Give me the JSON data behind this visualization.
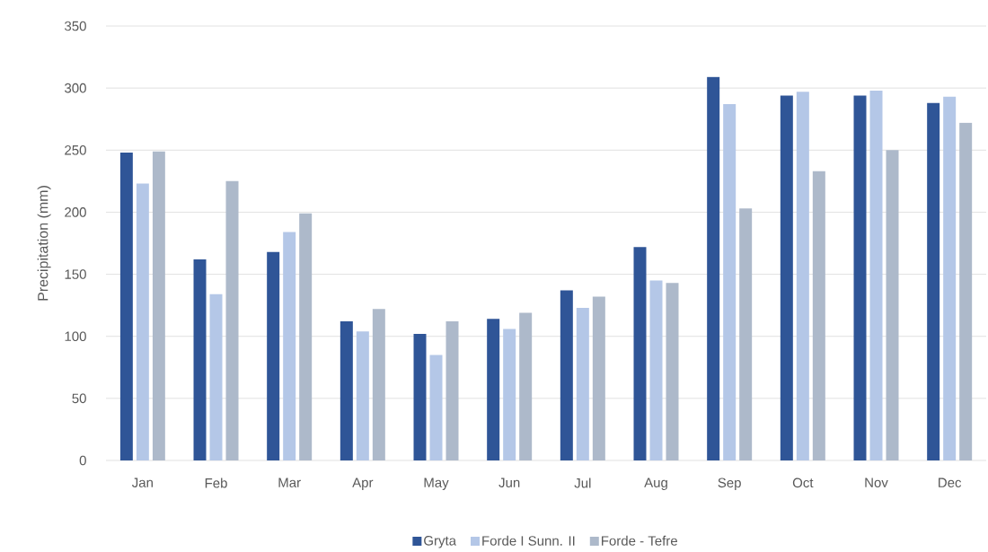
{
  "chart_data": {
    "type": "bar",
    "ylabel": "Precipitation (mm)",
    "categories": [
      "Jan",
      "Feb",
      "Mar",
      "Apr",
      "May",
      "Jun",
      "Jul",
      "Aug",
      "Sep",
      "Oct",
      "Nov",
      "Dec"
    ],
    "series": [
      {
        "name": "Gryta",
        "color": "#2f5597",
        "values": [
          248,
          162,
          168,
          112,
          102,
          114,
          137,
          172,
          309,
          294,
          294,
          288
        ]
      },
      {
        "name": "Forde I Sunn. II",
        "color": "#b4c7e7",
        "values": [
          223,
          134,
          184,
          104,
          85,
          106,
          123,
          145,
          287,
          297,
          298,
          293
        ]
      },
      {
        "name": "Forde - Tefre",
        "color": "#adb9ca",
        "values": [
          249,
          225,
          199,
          122,
          112,
          119,
          132,
          143,
          203,
          233,
          250,
          272
        ]
      }
    ],
    "ylim": [
      0,
      350
    ],
    "yticks": [
      0,
      50,
      100,
      150,
      200,
      250,
      300,
      350
    ],
    "grid": "y",
    "legend": "bottom"
  }
}
